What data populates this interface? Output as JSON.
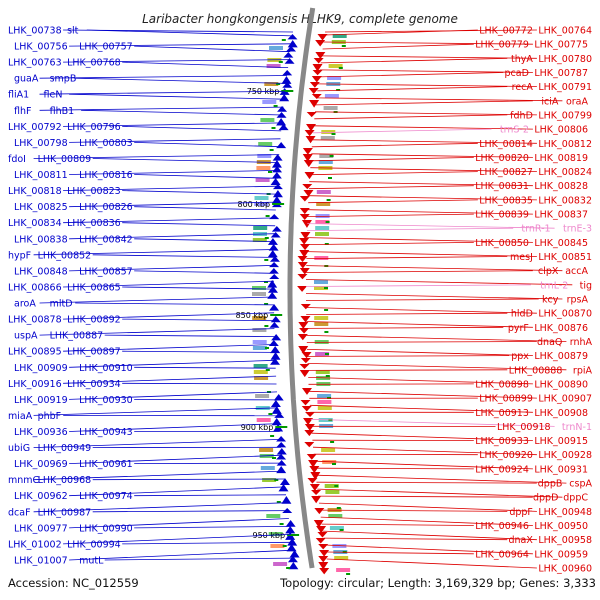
{
  "title": "Laribacter hongkongensis HLHK9, complete genome",
  "footer": {
    "accession": "Accession: NC_012559",
    "summary": "Topology: circular; Length: 3,169,329 bp; Genes: 3,333"
  },
  "scale_labels": [
    "750 kbp",
    "800 kbp",
    "850 kbp",
    "900 kbp",
    "950 kbp"
  ],
  "colors": {
    "minus_strand": "#0000cc",
    "plus_strand": "#dd0000",
    "rna": "#ee88cc",
    "backbone": "#888888",
    "tick": "#009900"
  },
  "left_labels": [
    "LHK_00738",
    "slt",
    "LHK_00756",
    "LHK_00757",
    "LHK_00763",
    "LHK_00768",
    "guaA",
    "smpB",
    "fliA1",
    "fleN",
    "flhF",
    "flhB1",
    "LHK_00792",
    "LHK_00796",
    "LHK_00798",
    "LHK_00803",
    "fdoI",
    "LHK_00809",
    "LHK_00811",
    "LHK_00816",
    "LHK_00818",
    "LHK_00823",
    "LHK_00825",
    "LHK_00826",
    "LHK_00834",
    "LHK_00836",
    "LHK_00838",
    "LHK_00842",
    "hypF",
    "LHK_00852",
    "LHK_00848",
    "LHK_00857",
    "LHK_00866",
    "LHK_00865",
    "aroA",
    "mltD",
    "LHK_00878",
    "LHK_00892",
    "uspA",
    "LHK_00887",
    "LHK_00895",
    "LHK_00897",
    "LHK_00909",
    "LHK_00910",
    "LHK_00916",
    "LHK_00934",
    "LHK_00919",
    "LHK_00930",
    "miaA",
    "phbF",
    "LHK_00936",
    "LHK_00943",
    "ubiG",
    "LHK_00949",
    "LHK_00969",
    "LHK_00961",
    "mnmC",
    "LHK_00968",
    "LHK_00962",
    "LHK_00974",
    "dcaF",
    "LHK_00987",
    "LHK_00977",
    "LHK_00990",
    "LHK_01002",
    "LHK_00994",
    "LHK_01007",
    "mutL"
  ],
  "right_labels": [
    "LHK_00764",
    "LHK_00772",
    "LHK_00775",
    "LHK_00779",
    "LHK_00780",
    "thyA",
    "LHK_00787",
    "pcaD",
    "LHK_00791",
    "recA",
    "oraA",
    "iciA",
    "LHK_00799",
    "fdhD",
    "LHK_00806",
    "trnS-2",
    "LHK_00812",
    "LHK_00814",
    "LHK_00819",
    "LHK_00820",
    "LHK_00824",
    "LHK_00827",
    "LHK_00828",
    "LHK_00831",
    "LHK_00832",
    "LHK_00835",
    "LHK_00837",
    "LHK_00839",
    "trnE-3",
    "trnR-1",
    "LHK_00845",
    "LHK_00850",
    "LHK_00851",
    "mesJ",
    "accA",
    "clpX",
    "tig",
    "trnL-2",
    "rpsA",
    "kcy",
    "LHK_00870",
    "hldD",
    "LHK_00876",
    "pyrF",
    "rnhA",
    "dnaQ",
    "LHK_00879",
    "ppx",
    "rpiA",
    "LHK_00888",
    "LHK_00890",
    "LHK_00898",
    "LHK_00907",
    "LHK_00899",
    "LHK_00908",
    "LHK_00913",
    "trnN-1",
    "LHK_00918",
    "LHK_00915",
    "LHK_00933",
    "LHK_00928",
    "LHK_00920",
    "LHK_00931",
    "LHK_00924",
    "cspA",
    "dppB",
    "dppC",
    "dppD",
    "LHK_00948",
    "dppF",
    "LHK_00950",
    "LHK_00946",
    "LHK_00958",
    "dnaX",
    "LHK_00959",
    "LHK_00964",
    "LHK_00960"
  ]
}
